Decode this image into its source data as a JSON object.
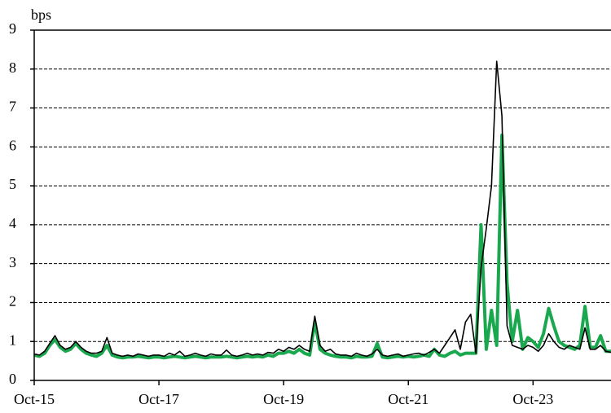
{
  "chart_data": {
    "type": "line",
    "y_label": "bps",
    "x": [
      "Oct-15",
      "Nov-15",
      "Dec-15",
      "Jan-16",
      "Feb-16",
      "Mar-16",
      "Apr-16",
      "May-16",
      "Jun-16",
      "Jul-16",
      "Aug-16",
      "Sep-16",
      "Oct-16",
      "Nov-16",
      "Dec-16",
      "Jan-17",
      "Feb-17",
      "Mar-17",
      "Apr-17",
      "May-17",
      "Jun-17",
      "Jul-17",
      "Aug-17",
      "Sep-17",
      "Oct-17",
      "Nov-17",
      "Dec-17",
      "Jan-18",
      "Feb-18",
      "Mar-18",
      "Apr-18",
      "May-18",
      "Jun-18",
      "Jul-18",
      "Aug-18",
      "Sep-18",
      "Oct-18",
      "Nov-18",
      "Dec-18",
      "Jan-19",
      "Feb-19",
      "Mar-19",
      "Apr-19",
      "May-19",
      "Jun-19",
      "Jul-19",
      "Aug-19",
      "Sep-19",
      "Oct-19",
      "Nov-19",
      "Dec-19",
      "Jan-20",
      "Feb-20",
      "Mar-20",
      "Apr-20",
      "May-20",
      "Jun-20",
      "Jul-20",
      "Aug-20",
      "Sep-20",
      "Oct-20",
      "Nov-20",
      "Dec-20",
      "Jan-21",
      "Feb-21",
      "Mar-21",
      "Apr-21",
      "May-21",
      "Jun-21",
      "Jul-21",
      "Aug-21",
      "Sep-21",
      "Oct-21",
      "Nov-21",
      "Dec-21",
      "Jan-22",
      "Feb-22",
      "Mar-22",
      "Apr-22",
      "May-22",
      "Jun-22",
      "Jul-22",
      "Aug-22",
      "Sep-22",
      "Oct-22",
      "Nov-22",
      "Dec-22",
      "Jan-23",
      "Feb-23",
      "Mar-23",
      "Apr-23",
      "May-23",
      "Jun-23",
      "Jul-23",
      "Aug-23",
      "Sep-23",
      "Oct-23",
      "Nov-23",
      "Dec-23",
      "Jan-24",
      "Feb-24",
      "Mar-24",
      "Apr-24",
      "May-24",
      "Jun-24",
      "Jul-24",
      "Aug-24",
      "Sep-24",
      "Oct-24",
      "Nov-24",
      "Dec-24",
      "Jan-25"
    ],
    "series": [
      {
        "color": "#1aa84f",
        "width": 4,
        "values": [
          0.65,
          0.62,
          0.7,
          0.9,
          1.05,
          0.85,
          0.75,
          0.8,
          0.95,
          0.8,
          0.7,
          0.65,
          0.62,
          0.7,
          0.9,
          0.65,
          0.6,
          0.58,
          0.6,
          0.6,
          0.62,
          0.6,
          0.58,
          0.6,
          0.6,
          0.58,
          0.6,
          0.62,
          0.6,
          0.58,
          0.6,
          0.62,
          0.6,
          0.58,
          0.6,
          0.6,
          0.6,
          0.62,
          0.6,
          0.58,
          0.6,
          0.62,
          0.6,
          0.62,
          0.6,
          0.65,
          0.62,
          0.7,
          0.7,
          0.75,
          0.7,
          0.8,
          0.7,
          0.65,
          1.5,
          0.8,
          0.7,
          0.65,
          0.62,
          0.6,
          0.6,
          0.58,
          0.62,
          0.6,
          0.6,
          0.62,
          0.95,
          0.6,
          0.58,
          0.6,
          0.62,
          0.6,
          0.62,
          0.6,
          0.62,
          0.65,
          0.62,
          0.8,
          0.65,
          0.62,
          0.7,
          0.75,
          0.65,
          0.7,
          0.7,
          0.7,
          4.0,
          0.8,
          1.8,
          0.9,
          6.3,
          2.5,
          1.0,
          1.8,
          0.8,
          1.1,
          1.0,
          0.85,
          1.2,
          1.85,
          1.4,
          1.0,
          0.9,
          0.85,
          0.8,
          0.9,
          1.9,
          0.85,
          0.85,
          1.15,
          0.75,
          0.75
        ]
      },
      {
        "color": "#000000",
        "width": 1.6,
        "values": [
          0.68,
          0.65,
          0.75,
          0.95,
          1.15,
          0.9,
          0.8,
          0.85,
          1.0,
          0.85,
          0.75,
          0.7,
          0.7,
          0.75,
          1.1,
          0.7,
          0.65,
          0.62,
          0.65,
          0.62,
          0.68,
          0.65,
          0.62,
          0.65,
          0.65,
          0.62,
          0.7,
          0.65,
          0.75,
          0.62,
          0.65,
          0.7,
          0.65,
          0.62,
          0.68,
          0.65,
          0.65,
          0.78,
          0.65,
          0.62,
          0.65,
          0.7,
          0.65,
          0.68,
          0.65,
          0.72,
          0.7,
          0.8,
          0.75,
          0.85,
          0.8,
          0.9,
          0.8,
          0.75,
          1.65,
          0.9,
          0.75,
          0.8,
          0.68,
          0.65,
          0.65,
          0.62,
          0.7,
          0.65,
          0.62,
          0.68,
          0.8,
          0.65,
          0.62,
          0.65,
          0.68,
          0.62,
          0.65,
          0.68,
          0.7,
          0.65,
          0.72,
          0.8,
          0.7,
          0.9,
          1.1,
          1.3,
          0.8,
          1.5,
          1.7,
          0.7,
          2.9,
          3.9,
          5.0,
          8.2,
          6.8,
          1.4,
          0.9,
          0.85,
          0.8,
          0.9,
          0.85,
          0.75,
          0.9,
          1.2,
          1.0,
          0.85,
          0.8,
          0.9,
          0.85,
          0.8,
          1.35,
          0.8,
          0.8,
          0.9,
          0.75,
          0.72
        ]
      }
    ],
    "xlim": [
      "Oct-15",
      "Jan-25"
    ],
    "xticks": [
      "Oct-15",
      "Oct-17",
      "Oct-19",
      "Oct-21",
      "Oct-23"
    ],
    "ylim": [
      0,
      9
    ],
    "yticks": [
      0,
      1,
      2,
      3,
      4,
      5,
      6,
      7,
      8,
      9
    ],
    "grid": true
  }
}
